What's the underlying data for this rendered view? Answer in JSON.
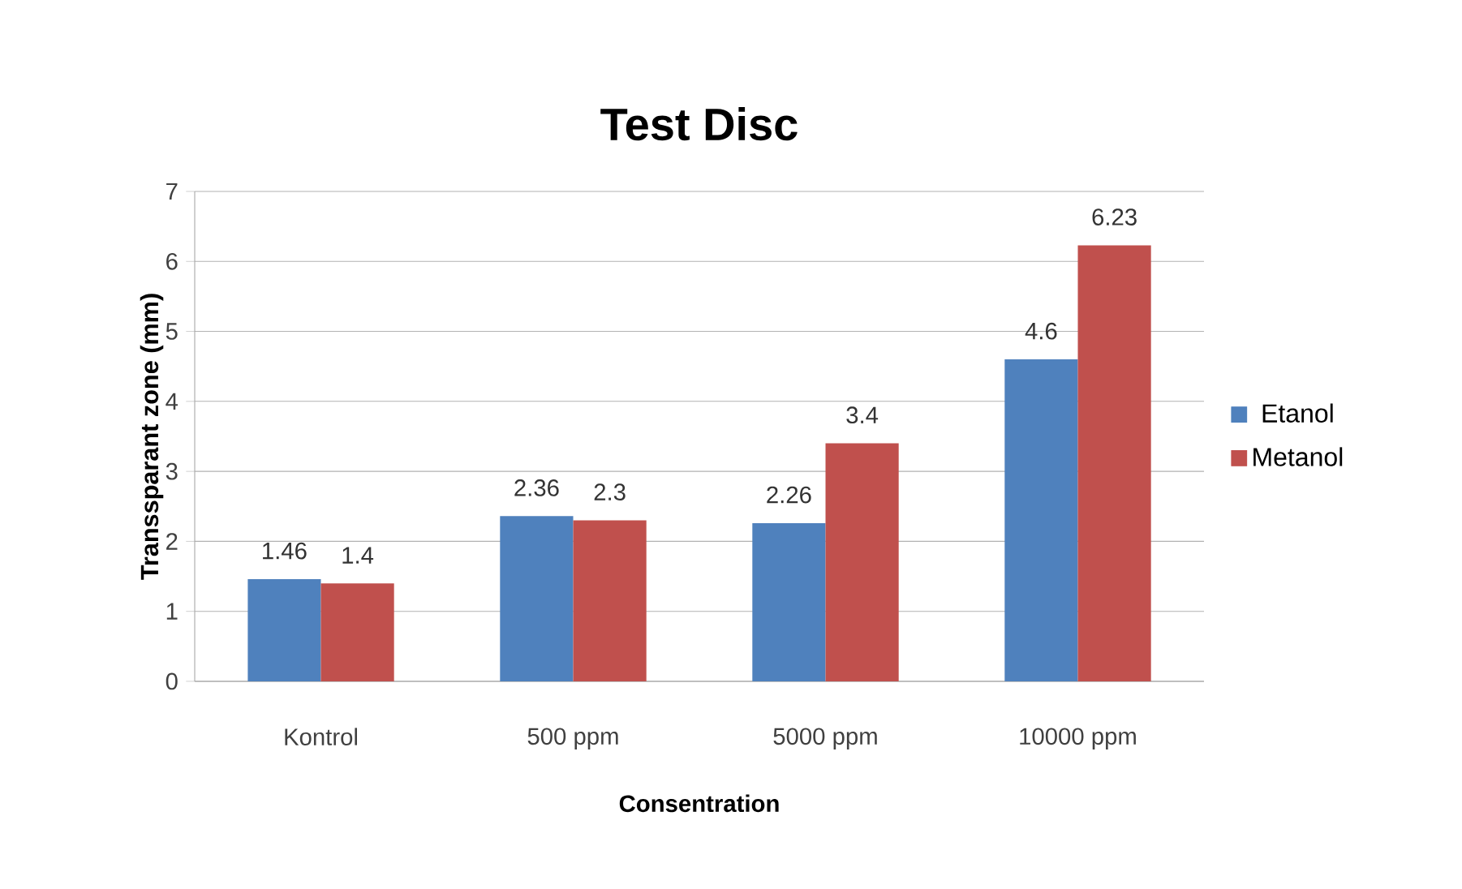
{
  "chart_data": {
    "type": "bar",
    "title": "Test Disc",
    "xlabel": "Consentration",
    "ylabel": "Transsparant zone  (mm)",
    "categories": [
      "Kontrol",
      "500 ppm",
      "5000 ppm",
      "10000 ppm"
    ],
    "series": [
      {
        "name": "Etanol",
        "color": "#4f81bd",
        "values": [
          1.46,
          2.36,
          2.26,
          4.6
        ]
      },
      {
        "name": "Metanol",
        "color": "#c0504d",
        "values": [
          1.4,
          2.3,
          3.4,
          6.23
        ]
      }
    ],
    "ylim": [
      0,
      7
    ],
    "yticks": [
      0,
      1,
      2,
      3,
      4,
      5,
      6,
      7
    ],
    "grid": "y",
    "legend": "right",
    "data_labels": true
  }
}
